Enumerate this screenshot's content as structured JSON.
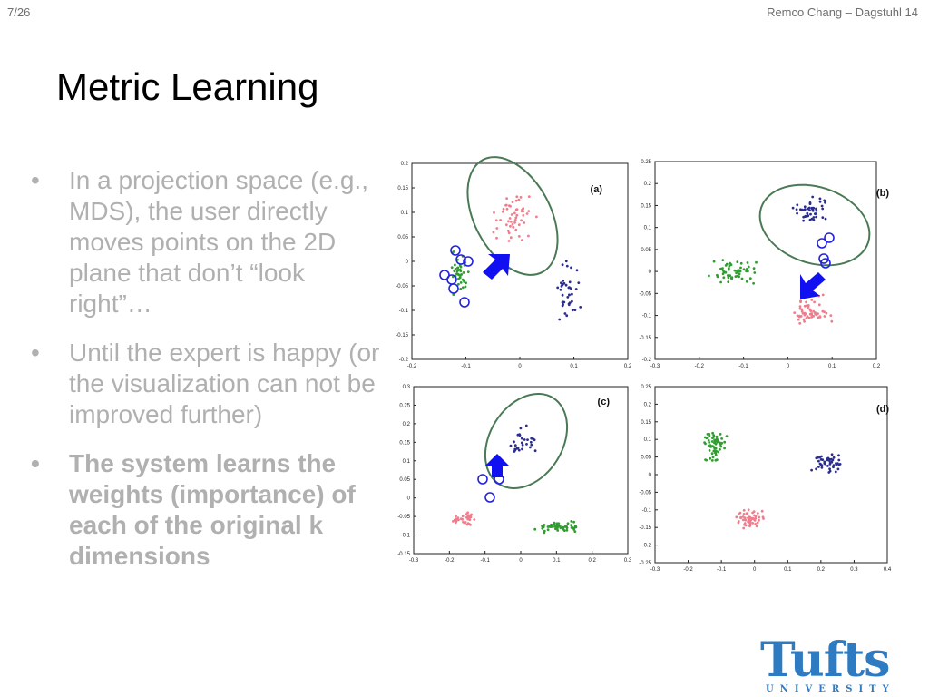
{
  "header": {
    "page_number": "7/26",
    "author_event": "Remco Chang – Dagstuhl 14"
  },
  "title": "Metric Learning",
  "bullets": [
    {
      "text": "In a projection space (e.g., MDS), the user directly moves points on the 2D plane that don’t “look right”…",
      "bold": false
    },
    {
      "text": "Until the expert is happy (or the visualization can not be improved further)",
      "bold": false
    },
    {
      "text": "The system learns the weights (importance) of each of the original k dimensions",
      "bold": true
    }
  ],
  "bullet_symbol": "•",
  "logo": {
    "main": "Tufts",
    "sub": "UNIVERSITY"
  },
  "colors": {
    "green": "#2f9e2f",
    "red": "#f07c8c",
    "blue": "#2b2d8f",
    "arrow": "#1010f0",
    "ellipse": "#4a7a55",
    "logo": "#2e7bc2"
  },
  "chart_data": [
    {
      "type": "scatter",
      "label": "(a)",
      "xlim": [
        -0.2,
        0.2
      ],
      "ylim": [
        -0.2,
        0.2
      ],
      "xticks": [
        "-0.2",
        "-0.1",
        "0",
        "0.1",
        "0.2"
      ],
      "yticks": [
        "-0.2",
        "-0.15",
        "-0.1",
        "-0.05",
        "0",
        "0.05",
        "0.1",
        "0.15",
        "0.2"
      ],
      "annotations": [
        "ellipse around red cluster",
        "arrow pointing down-left",
        "7 circled points"
      ]
    },
    {
      "type": "scatter",
      "label": "(b)",
      "xlim": [
        -0.3,
        0.2
      ],
      "ylim": [
        -0.2,
        0.25
      ],
      "xticks": [
        "-0.3",
        "-0.2",
        "-0.1",
        "0",
        "0.1",
        "0.2"
      ],
      "yticks": [
        "-0.2",
        "-0.15",
        "-0.1",
        "-0.05",
        "0",
        "0.05",
        "0.1",
        "0.15",
        "0.2",
        "0.25"
      ],
      "annotations": [
        "ellipse around blue cluster",
        "arrow pointing down-left",
        "4 circled points"
      ]
    },
    {
      "type": "scatter",
      "label": "(c)",
      "xlim": [
        -0.3,
        0.3
      ],
      "ylim": [
        -0.15,
        0.3
      ],
      "xticks": [
        "-0.3",
        "-0.2",
        "-0.1",
        "0",
        "0.1",
        "0.2",
        "0.3"
      ],
      "yticks": [
        "-0.15",
        "-0.1",
        "-0.05",
        "0",
        "0.05",
        "0.1",
        "0.15",
        "0.2",
        "0.25",
        "0.3"
      ],
      "annotations": [
        "ellipse around blue cluster",
        "arrow pointing up",
        "4 circled points"
      ]
    },
    {
      "type": "scatter",
      "label": "(d)",
      "xlim": [
        -0.3,
        0.4
      ],
      "ylim": [
        -0.25,
        0.25
      ],
      "xticks": [
        "-0.3",
        "-0.2",
        "-0.1",
        "0",
        "0.1",
        "0.2",
        "0.3",
        "0.4"
      ],
      "yticks": [
        "-0.25",
        "-0.2",
        "-0.15",
        "-0.1",
        "-0.05",
        "0",
        "0.05",
        "0.1",
        "0.15",
        "0.2",
        "0.25"
      ],
      "annotations": []
    }
  ]
}
